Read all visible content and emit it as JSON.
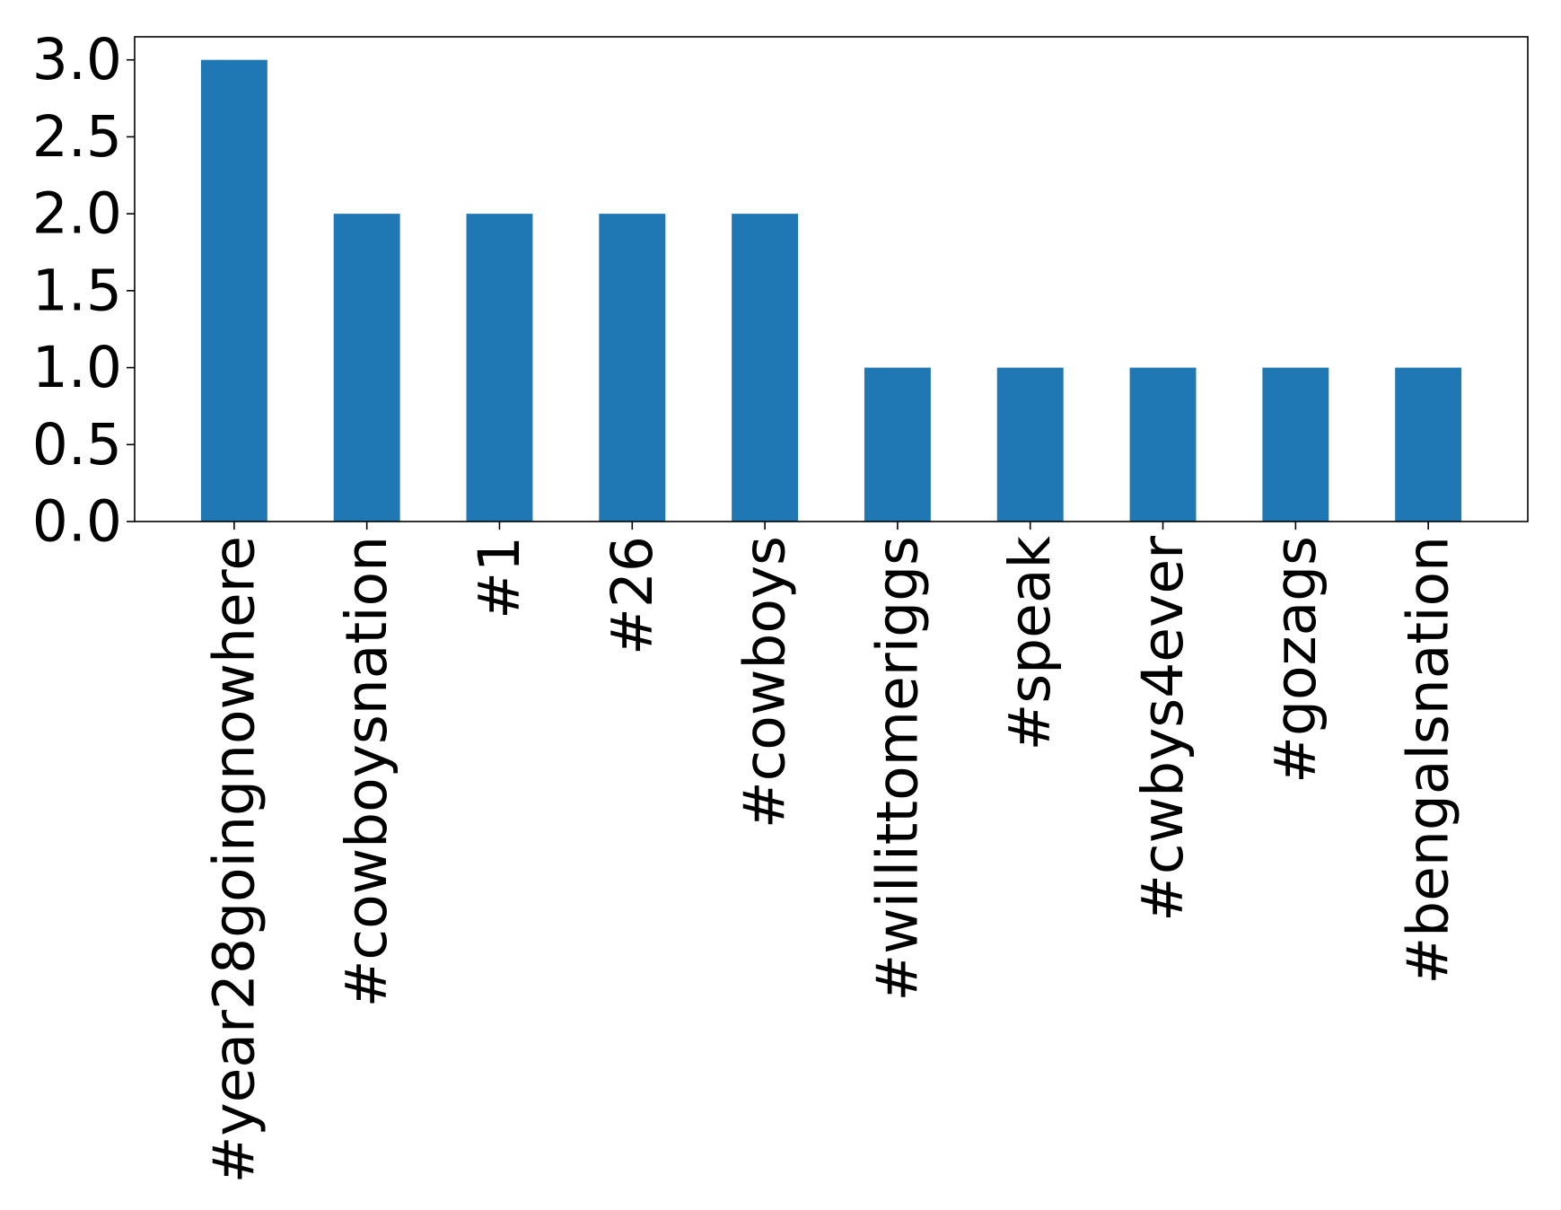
{
  "chart_data": {
    "type": "bar",
    "title": "",
    "xlabel": "",
    "ylabel": "",
    "categories": [
      "#year28goingnowhere",
      "#cowboysnation",
      "#1",
      "#26",
      "#cowboys",
      "#willittomeriggs",
      "#speak",
      "#cwbys4ever",
      "#gozags",
      "#bengalsnation"
    ],
    "values": [
      3,
      2,
      2,
      2,
      2,
      1,
      1,
      1,
      1,
      1
    ],
    "ylim": [
      0,
      3.15
    ],
    "yticks": [
      "0.0",
      "0.5",
      "1.0",
      "1.5",
      "2.0",
      "2.5",
      "3.0"
    ],
    "bar_color": "#1f77b4",
    "grid": false,
    "legend": "none"
  }
}
